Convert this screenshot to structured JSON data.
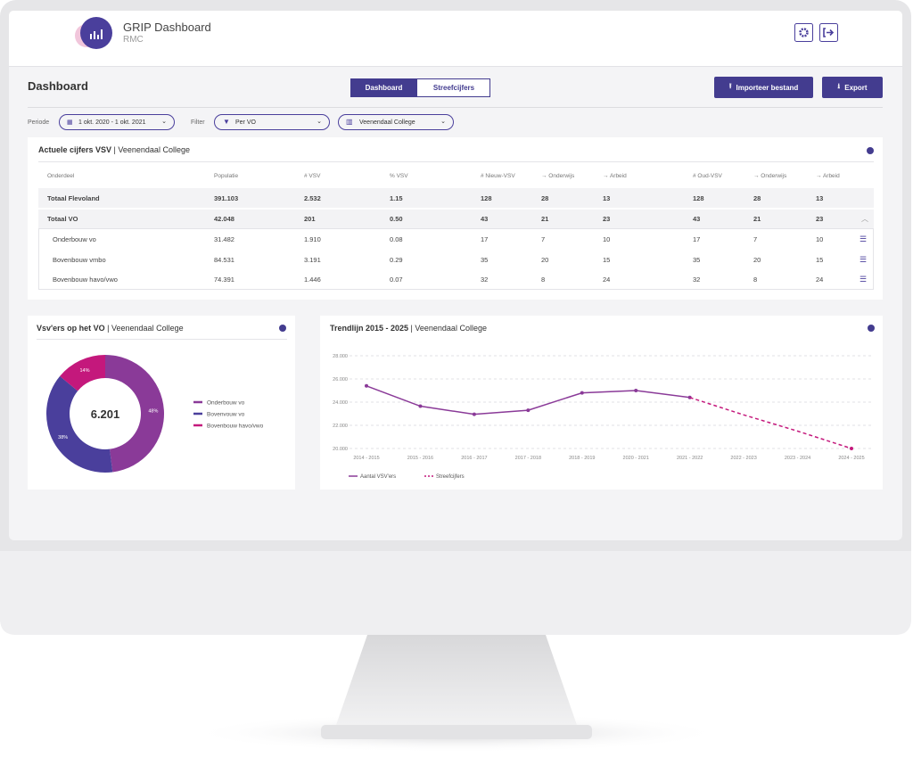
{
  "header": {
    "title": "GRIP Dashboard",
    "subtitle": "RMC"
  },
  "page_title": "Dashboard",
  "tabs": [
    "Dashboard",
    "Streefcijfers"
  ],
  "buttons": [
    "Importeer bestand",
    "Export"
  ],
  "filters": {
    "period_label": "Periode",
    "period": "1 okt. 2020 - 1 okt. 2021",
    "filter_label": "Filter",
    "filter": "Per VO",
    "school": "Veenendaal College"
  },
  "table": {
    "title": "Actuele cijfers VSV",
    "subtitle": "Veenendaal College",
    "headers": [
      "Onderdeel",
      "Populatie",
      "# VSV",
      "% VSV",
      "# Nieuw-VSV",
      "→ Onderwijs",
      "→ Arbeid",
      "# Oud-VSV",
      "→ Onderwijs",
      "→ Arbeid"
    ],
    "rows": [
      [
        "Totaal Flevoland",
        "391.103",
        "2.532",
        "1.15",
        "128",
        "28",
        "13",
        "128",
        "28",
        "13"
      ],
      [
        "Totaal VO",
        "42.048",
        "201",
        "0.50",
        "43",
        "21",
        "23",
        "43",
        "21",
        "23"
      ],
      [
        "Onderbouw vo",
        "31.482",
        "1.910",
        "0.08",
        "17",
        "7",
        "10",
        "17",
        "7",
        "10"
      ],
      [
        "Bovenbouw vmbo",
        "84.531",
        "3.191",
        "0.29",
        "35",
        "20",
        "15",
        "35",
        "20",
        "15"
      ],
      [
        "Bovenbouw havo/vwo",
        "74.391",
        "1.446",
        "0.07",
        "32",
        "8",
        "24",
        "32",
        "8",
        "24"
      ]
    ]
  },
  "chart_data": [
    {
      "type": "donut",
      "title": "Vsv'ers op het VO",
      "subtitle": "Veenendaal College",
      "center_label": "6.201",
      "categories": [
        "Onderbouw vo",
        "Bovenvouw vo",
        "Bovenbouw havo/vwo"
      ],
      "values": [
        48,
        38,
        14
      ],
      "value_labels": [
        "48%",
        "38%",
        "14%"
      ],
      "colors": [
        "#8a3a98",
        "#4a3f9c",
        "#c4187c"
      ]
    },
    {
      "type": "line",
      "title": "Trendlijn 2015 - 2025",
      "subtitle": "Veenendaal College",
      "categories": [
        "2014 - 2015",
        "2015 - 2016",
        "2016 - 2017",
        "2017 - 2018",
        "2018 - 2019",
        "2020 - 2021",
        "2021 - 2022",
        "2022 - 2023",
        "2023 - 2024",
        "2024 - 2025"
      ],
      "series": [
        {
          "name": "Aantal VSV'ers",
          "color": "#8a3a98",
          "dashed": false,
          "values": [
            25400,
            23650,
            22950,
            23300,
            24800,
            25000,
            24400,
            null,
            null,
            null
          ]
        },
        {
          "name": "Streefcijfers",
          "color": "#c4187c",
          "dashed": true,
          "values": [
            null,
            null,
            null,
            null,
            null,
            null,
            24400,
            22900,
            21500,
            20000
          ]
        }
      ],
      "ylim": [
        20000,
        28000
      ],
      "yticks": [
        {
          "value": 20000,
          "label": "20.000"
        },
        {
          "value": 22000,
          "label": "22.000"
        },
        {
          "value": 24000,
          "label": "24.000"
        },
        {
          "value": 26000,
          "label": "26.000"
        },
        {
          "value": 28000,
          "label": "28.000"
        }
      ],
      "grid": true
    }
  ]
}
